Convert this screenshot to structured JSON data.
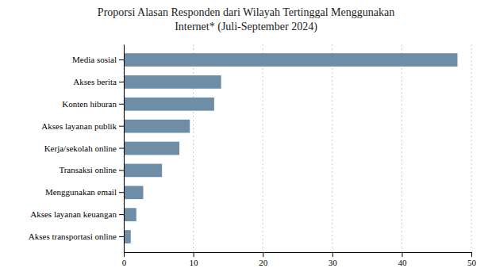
{
  "chart_data": {
    "type": "bar",
    "orientation": "horizontal",
    "title": "Proporsi Alasan Responden dari Wilayah Tertinggal Menggunakan\nInternet* (Juli-September 2024)",
    "categories": [
      "Akses transportasi online",
      "Akses layanan keuangan",
      "Menggunakan email",
      "Transaksi online",
      "Kerja/sekolah online",
      "Akses layanan publik",
      "Konten hiburan",
      "Akses berita",
      "Media sosial"
    ],
    "values": [
      1.0,
      1.8,
      2.8,
      5.5,
      8.0,
      9.5,
      13.0,
      14.0,
      48.0
    ],
    "color": "#6e8ea8",
    "xlim": [
      0,
      50
    ],
    "xticks": [
      0,
      10,
      20,
      30,
      40,
      50
    ],
    "grid": true
  }
}
